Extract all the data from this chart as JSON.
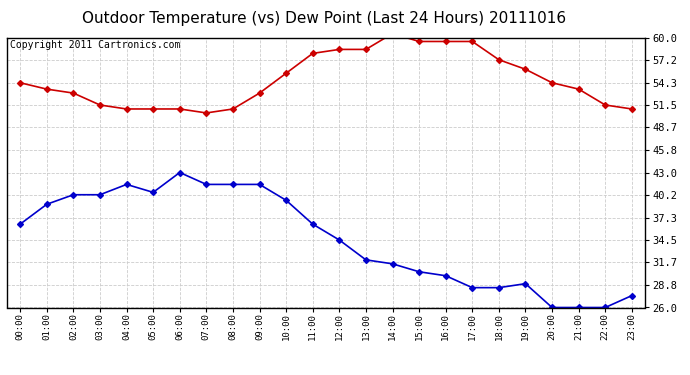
{
  "title": "Outdoor Temperature (vs) Dew Point (Last 24 Hours) 20111016",
  "subtitle": "Copyright 2011 Cartronics.com",
  "hours": [
    "00:00",
    "01:00",
    "02:00",
    "03:00",
    "04:00",
    "05:00",
    "06:00",
    "07:00",
    "08:00",
    "09:00",
    "10:00",
    "11:00",
    "12:00",
    "13:00",
    "14:00",
    "15:00",
    "16:00",
    "17:00",
    "18:00",
    "19:00",
    "20:00",
    "21:00",
    "22:00",
    "23:00"
  ],
  "temp": [
    54.3,
    53.5,
    53.0,
    51.5,
    51.0,
    51.0,
    51.0,
    50.5,
    51.0,
    53.0,
    55.5,
    58.0,
    58.5,
    58.5,
    60.5,
    59.5,
    59.5,
    59.5,
    57.2,
    56.0,
    54.3,
    53.5,
    51.5,
    51.0
  ],
  "dew": [
    36.5,
    39.0,
    40.2,
    40.2,
    41.5,
    40.5,
    43.0,
    41.5,
    41.5,
    41.5,
    39.5,
    36.5,
    34.5,
    32.0,
    31.5,
    30.5,
    30.0,
    28.5,
    28.5,
    29.0,
    26.0,
    26.0,
    26.0,
    27.5
  ],
  "temp_color": "#cc0000",
  "dew_color": "#0000cc",
  "bg_color": "#ffffff",
  "plot_bg_color": "#ffffff",
  "grid_color": "#cccccc",
  "ylim": [
    26.0,
    60.0
  ],
  "yticks": [
    26.0,
    28.8,
    31.7,
    34.5,
    37.3,
    40.2,
    43.0,
    45.8,
    48.7,
    51.5,
    54.3,
    57.2,
    60.0
  ],
  "title_fontsize": 11,
  "subtitle_fontsize": 7,
  "marker": "D",
  "markersize": 3,
  "linewidth": 1.2
}
